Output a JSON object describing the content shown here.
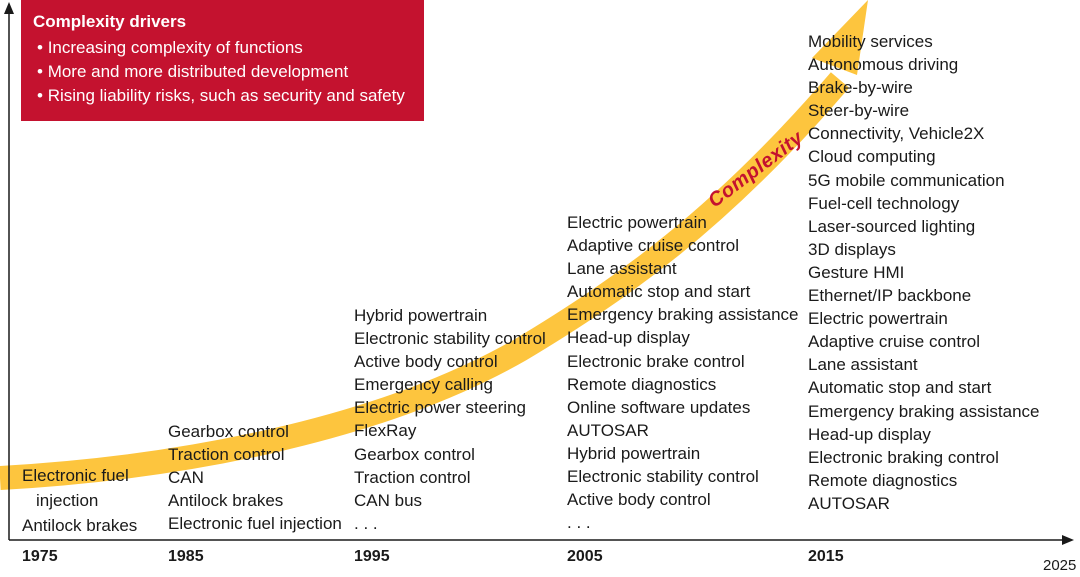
{
  "drivers": {
    "title": "Complexity drivers",
    "items": [
      "Increasing complexity of functions",
      "More and more distributed development",
      "Rising liability risks, such as security and safety"
    ]
  },
  "arrow_label": "Complexity",
  "timeline": {
    "years": [
      "1975",
      "1985",
      "1995",
      "2005",
      "2015"
    ],
    "end_year": "2025"
  },
  "columns": {
    "c1975": [
      "Electronic fuel",
      "injection",
      "Antilock brakes"
    ],
    "c1985": [
      "Gearbox control",
      "Traction control",
      "CAN",
      "Antilock brakes",
      "Electronic fuel injection"
    ],
    "c1995": [
      "Hybrid powertrain",
      "Electronic stability control",
      "Active body control",
      "Emergency calling",
      "Electric power steering",
      "FlexRay",
      "Gearbox control",
      "Traction control",
      "CAN bus",
      ". . ."
    ],
    "c2005": [
      "Electric powertrain",
      "Adaptive cruise control",
      "Lane assistant",
      "Automatic stop and start",
      "Emergency braking assistance",
      "Head-up display",
      "Electronic brake control",
      "Remote diagnostics",
      "Online software updates",
      "AUTOSAR",
      "Hybrid powertrain",
      "Electronic stability control",
      "Active body control",
      ". . ."
    ],
    "c2015": [
      "Mobility services",
      "Autonomous driving",
      "Brake-by-wire",
      "Steer-by-wire",
      "Connectivity, Vehicle2X",
      "Cloud computing",
      "5G mobile communication",
      "Fuel-cell technology",
      "Laser-sourced lighting",
      "3D displays",
      "Gesture HMI",
      "Ethernet/IP backbone",
      "Electric powertrain",
      "Adaptive cruise control",
      "Lane assistant",
      "Automatic stop and start",
      "Emergency braking assistance",
      "Head-up display",
      "Electronic braking control",
      "Remote diagnostics",
      "AUTOSAR"
    ]
  },
  "colors": {
    "accent_red": "#c4122f",
    "arrow_yellow": "#fdc53e",
    "axis": "#1a1a1a"
  }
}
